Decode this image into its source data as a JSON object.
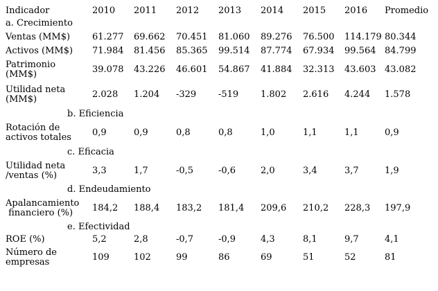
{
  "page": {
    "background_color": "#ffffff",
    "text_color": "#000000"
  },
  "table": {
    "headers": [
      "Indicador",
      "2010",
      "2011",
      "2012",
      "2013",
      "2014",
      "2015",
      "2016",
      "Promedio"
    ],
    "rows": [
      {
        "type": "section",
        "label": "a. Crecimiento",
        "indent": false
      },
      {
        "type": "data",
        "label": "Ventas (MM$)",
        "values": [
          "61.277",
          "69.662",
          "70.451",
          "81.060",
          "89.276",
          "76.500",
          "114.179",
          "80.344"
        ]
      },
      {
        "type": "data",
        "label": "Activos (MM$)",
        "values": [
          "71.984",
          "81.456",
          "85.365",
          "99.514",
          "87.774",
          "67.934",
          "99.564",
          "84.799"
        ]
      },
      {
        "type": "data",
        "label": "Patrimonio\n(MM$)",
        "values": [
          "39.078",
          "43.226",
          "46.601",
          "54.867",
          "41.884",
          "32.313",
          "43.603",
          "43.082"
        ]
      },
      {
        "type": "data",
        "label": "Utilidad neta\n(MM$)",
        "values": [
          "2.028",
          "1.204",
          "-329",
          "-519",
          "1.802",
          "2.616",
          "4.244",
          "1.578"
        ]
      },
      {
        "type": "section",
        "label": "b. Eficiencia",
        "indent": true
      },
      {
        "type": "data",
        "label": "Rotación de\nactivos totales",
        "values": [
          "0,9",
          "0,9",
          "0,8",
          "0,8",
          "1,0",
          "1,1",
          "1,1",
          "0,9"
        ]
      },
      {
        "type": "section",
        "label": "c. Eficacia",
        "indent": true
      },
      {
        "type": "data",
        "label": "Utilidad neta\n/ventas (%)",
        "values": [
          "3,3",
          "1,7",
          "-0,5",
          "-0,6",
          "2,0",
          "3,4",
          "3,7",
          "1,9"
        ]
      },
      {
        "type": "section",
        "label": "d. Endeudamiento",
        "indent": true
      },
      {
        "type": "data",
        "label": "Apalancamiento\n financiero (%)",
        "values": [
          "184,2",
          "188,4",
          "183,2",
          "181,4",
          "209,6",
          "210,2",
          "228,3",
          "197,9"
        ]
      },
      {
        "type": "section",
        "label": "e. Efectividad",
        "indent": true
      },
      {
        "type": "data",
        "label": "ROE (%)",
        "values": [
          "5,2",
          "2,8",
          "-0,7",
          "-0,9",
          "4,3",
          "8,1",
          "9,7",
          "4,1"
        ]
      },
      {
        "type": "data",
        "label": "Número de\nempresas",
        "values": [
          "109",
          "102",
          "99",
          "86",
          "69",
          "51",
          "52",
          "81"
        ]
      }
    ]
  }
}
